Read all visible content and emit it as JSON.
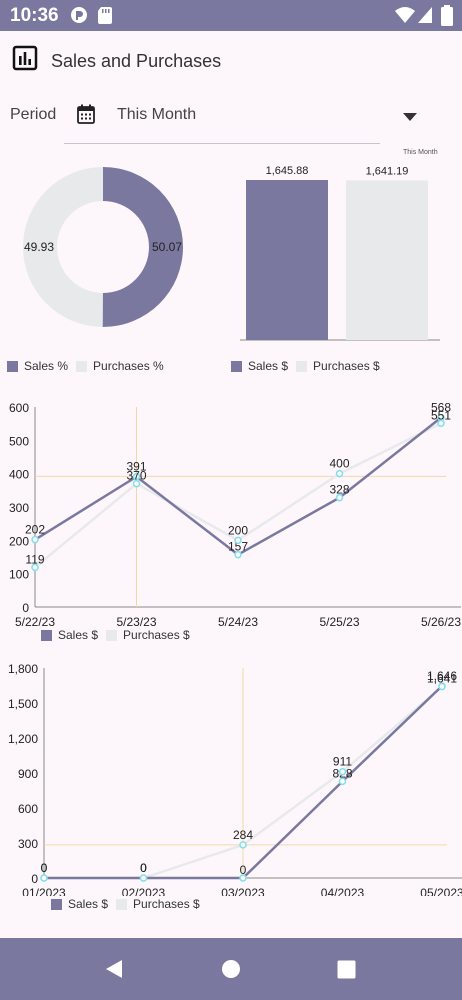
{
  "status_bar": {
    "time": "10:36"
  },
  "header": {
    "title": "Sales and Purchases",
    "icon": "bar-chart-icon"
  },
  "period": {
    "label": "Period",
    "value": "This Month"
  },
  "colors": {
    "sales": "#7b789f",
    "purchases": "#e8e9eb",
    "accent_point": "#80deea",
    "crosshair": "#f0d8a8"
  },
  "chart_data": [
    {
      "type": "pie",
      "labels": [
        "Sales %",
        "Purchases %"
      ],
      "values": [
        50.07,
        49.93
      ]
    },
    {
      "type": "bar",
      "title": "This Month",
      "categories": [
        "Sales $",
        "Purchases $"
      ],
      "values": [
        1645.88,
        1641.19
      ],
      "value_labels": [
        "1,645.88",
        "1,641.19"
      ]
    },
    {
      "type": "line",
      "x": [
        "5/22/23",
        "5/23/23",
        "5/24/23",
        "5/25/23",
        "5/26/23"
      ],
      "series": [
        {
          "name": "Sales $",
          "values": [
            202,
            391,
            157,
            328,
            568
          ]
        },
        {
          "name": "Purchases $",
          "values": [
            119,
            370,
            200,
            400,
            551
          ]
        }
      ],
      "ylim": [
        0,
        600
      ],
      "yticks": [
        "0",
        "100",
        "200",
        "300",
        "400",
        "500",
        "600"
      ]
    },
    {
      "type": "line",
      "x": [
        "01/2023",
        "02/2023",
        "03/2023",
        "04/2023",
        "05/2023"
      ],
      "series": [
        {
          "name": "Sales $",
          "values": [
            0,
            0,
            0,
            828,
            1646
          ]
        },
        {
          "name": "Purchases $",
          "values": [
            0,
            0,
            284,
            911,
            1641
          ]
        }
      ],
      "series_value_labels": [
        [
          "0",
          "0",
          "0",
          "828",
          "1,646"
        ],
        [
          "0",
          "0",
          "284",
          "911",
          "1,641"
        ]
      ],
      "ylim": [
        0,
        1800
      ],
      "yticks": [
        "0",
        "300",
        "600",
        "900",
        "1,200",
        "1,500",
        "1,800"
      ]
    }
  ]
}
